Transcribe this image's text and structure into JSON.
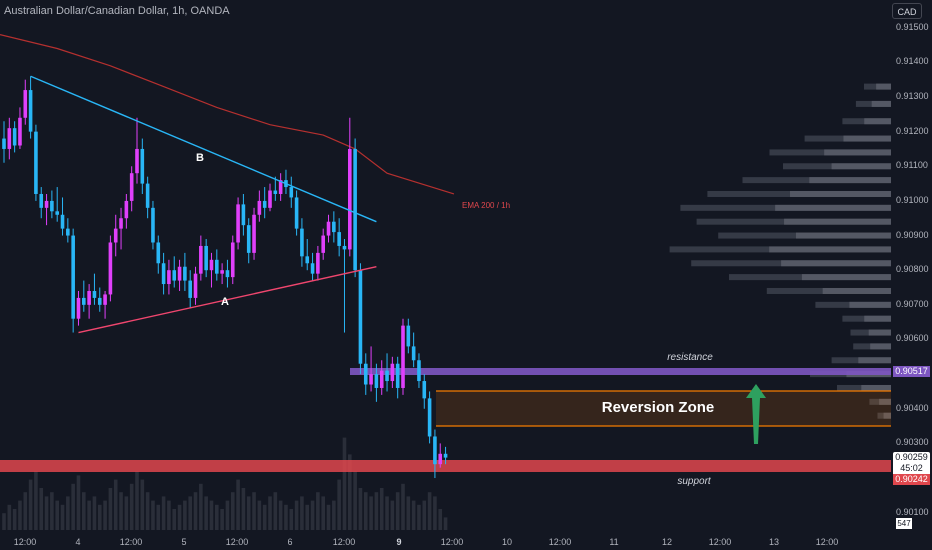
{
  "header": {
    "title": "Australian Dollar/Canadian Dollar, 1h, OANDA"
  },
  "currency_button": "CAD",
  "price_axis": {
    "labels": [
      "0.91500",
      "0.91400",
      "0.91300",
      "0.91200",
      "0.91100",
      "0.91000",
      "0.90900",
      "0.90800",
      "0.90700",
      "0.90600",
      "0.90400",
      "0.90300",
      "0.90100"
    ],
    "resistance_badge": "0.90517",
    "current_price_badge": "0.90259",
    "countdown": "45:02",
    "support_badge": "0.90242",
    "volume_badge": "547"
  },
  "time_axis": {
    "labels": [
      {
        "text": "12:00",
        "bold": false
      },
      {
        "text": "4",
        "bold": false
      },
      {
        "text": "12:00",
        "bold": false
      },
      {
        "text": "5",
        "bold": false
      },
      {
        "text": "12:00",
        "bold": false
      },
      {
        "text": "6",
        "bold": false
      },
      {
        "text": "12:00",
        "bold": false
      },
      {
        "text": "9",
        "bold": true
      },
      {
        "text": "12:00",
        "bold": false
      },
      {
        "text": "10",
        "bold": false
      },
      {
        "text": "12:00",
        "bold": false
      },
      {
        "text": "11",
        "bold": false
      },
      {
        "text": "12",
        "bold": false
      },
      {
        "text": "12:00",
        "bold": false
      },
      {
        "text": "13",
        "bold": false
      },
      {
        "text": "12:00",
        "bold": false
      }
    ]
  },
  "annotations": {
    "resistance": "resistance",
    "support": "support",
    "reversion_zone": "Reversion Zone",
    "ema": "EMA 200 / 1h",
    "line_a": "A",
    "line_b": "B"
  },
  "colors": {
    "background": "#131722",
    "bull": "#e040fb",
    "bear": "#29b6f6",
    "ema": "#b5302f",
    "trend_b": "#29b6f6",
    "trend_a": "#f0466e",
    "resistance": "#7e57c2",
    "support": "#e0474d",
    "zone_border": "#f57c00",
    "arrow": "#2ea05f"
  },
  "chart_data": {
    "type": "candlestick",
    "symbol": "AUDCAD",
    "timeframe": "1h",
    "price_range": [
      0.9005,
      0.9158
    ],
    "levels": {
      "resistance": 0.90517,
      "support": 0.90242,
      "reversion_zone": [
        0.90355,
        0.90455
      ]
    },
    "candles": [
      {
        "o": 0.9118,
        "h": 0.9123,
        "l": 0.9111,
        "c": 0.9115
      },
      {
        "o": 0.9115,
        "h": 0.9124,
        "l": 0.9112,
        "c": 0.9121
      },
      {
        "o": 0.9121,
        "h": 0.9123,
        "l": 0.9114,
        "c": 0.9116
      },
      {
        "o": 0.9116,
        "h": 0.9127,
        "l": 0.9115,
        "c": 0.9124
      },
      {
        "o": 0.9124,
        "h": 0.9135,
        "l": 0.9122,
        "c": 0.9132
      },
      {
        "o": 0.9132,
        "h": 0.9136,
        "l": 0.9118,
        "c": 0.912
      },
      {
        "o": 0.912,
        "h": 0.9122,
        "l": 0.91,
        "c": 0.9102
      },
      {
        "o": 0.9102,
        "h": 0.9104,
        "l": 0.9095,
        "c": 0.9098
      },
      {
        "o": 0.9098,
        "h": 0.9102,
        "l": 0.9093,
        "c": 0.91
      },
      {
        "o": 0.91,
        "h": 0.9103,
        "l": 0.9095,
        "c": 0.9097
      },
      {
        "o": 0.9097,
        "h": 0.9104,
        "l": 0.9094,
        "c": 0.9096
      },
      {
        "o": 0.9096,
        "h": 0.9101,
        "l": 0.909,
        "c": 0.9092
      },
      {
        "o": 0.9092,
        "h": 0.9095,
        "l": 0.9088,
        "c": 0.909
      },
      {
        "o": 0.909,
        "h": 0.9092,
        "l": 0.9062,
        "c": 0.9066
      },
      {
        "o": 0.9066,
        "h": 0.9074,
        "l": 0.9064,
        "c": 0.9072
      },
      {
        "o": 0.9072,
        "h": 0.9077,
        "l": 0.9068,
        "c": 0.907
      },
      {
        "o": 0.907,
        "h": 0.9076,
        "l": 0.9066,
        "c": 0.9074
      },
      {
        "o": 0.9074,
        "h": 0.9079,
        "l": 0.907,
        "c": 0.9072
      },
      {
        "o": 0.9072,
        "h": 0.9075,
        "l": 0.9068,
        "c": 0.907
      },
      {
        "o": 0.907,
        "h": 0.9074,
        "l": 0.9066,
        "c": 0.9073
      },
      {
        "o": 0.9073,
        "h": 0.909,
        "l": 0.9071,
        "c": 0.9088
      },
      {
        "o": 0.9088,
        "h": 0.9096,
        "l": 0.9084,
        "c": 0.9092
      },
      {
        "o": 0.9092,
        "h": 0.9098,
        "l": 0.9086,
        "c": 0.9095
      },
      {
        "o": 0.9095,
        "h": 0.9102,
        "l": 0.9092,
        "c": 0.91
      },
      {
        "o": 0.91,
        "h": 0.911,
        "l": 0.9097,
        "c": 0.9108
      },
      {
        "o": 0.9108,
        "h": 0.9124,
        "l": 0.9105,
        "c": 0.9115
      },
      {
        "o": 0.9115,
        "h": 0.9118,
        "l": 0.9102,
        "c": 0.9105
      },
      {
        "o": 0.9105,
        "h": 0.9107,
        "l": 0.9095,
        "c": 0.9098
      },
      {
        "o": 0.9098,
        "h": 0.91,
        "l": 0.9086,
        "c": 0.9088
      },
      {
        "o": 0.9088,
        "h": 0.909,
        "l": 0.9079,
        "c": 0.9082
      },
      {
        "o": 0.9082,
        "h": 0.9085,
        "l": 0.9073,
        "c": 0.9076
      },
      {
        "o": 0.9076,
        "h": 0.9083,
        "l": 0.9073,
        "c": 0.908
      },
      {
        "o": 0.908,
        "h": 0.9084,
        "l": 0.9075,
        "c": 0.9077
      },
      {
        "o": 0.9077,
        "h": 0.9083,
        "l": 0.9074,
        "c": 0.9081
      },
      {
        "o": 0.9081,
        "h": 0.9085,
        "l": 0.9074,
        "c": 0.9077
      },
      {
        "o": 0.9077,
        "h": 0.908,
        "l": 0.9069,
        "c": 0.9072
      },
      {
        "o": 0.9072,
        "h": 0.9081,
        "l": 0.907,
        "c": 0.9079
      },
      {
        "o": 0.9079,
        "h": 0.909,
        "l": 0.9077,
        "c": 0.9087
      },
      {
        "o": 0.9087,
        "h": 0.9089,
        "l": 0.9078,
        "c": 0.908
      },
      {
        "o": 0.908,
        "h": 0.9085,
        "l": 0.9075,
        "c": 0.9083
      },
      {
        "o": 0.9083,
        "h": 0.9086,
        "l": 0.9077,
        "c": 0.9079
      },
      {
        "o": 0.9079,
        "h": 0.9082,
        "l": 0.9076,
        "c": 0.908
      },
      {
        "o": 0.908,
        "h": 0.9083,
        "l": 0.9075,
        "c": 0.9078
      },
      {
        "o": 0.9078,
        "h": 0.909,
        "l": 0.9076,
        "c": 0.9088
      },
      {
        "o": 0.9088,
        "h": 0.9101,
        "l": 0.9086,
        "c": 0.9099
      },
      {
        "o": 0.9099,
        "h": 0.9102,
        "l": 0.909,
        "c": 0.9093
      },
      {
        "o": 0.9093,
        "h": 0.9095,
        "l": 0.9082,
        "c": 0.9085
      },
      {
        "o": 0.9085,
        "h": 0.9098,
        "l": 0.9083,
        "c": 0.9096
      },
      {
        "o": 0.9096,
        "h": 0.9103,
        "l": 0.9094,
        "c": 0.91
      },
      {
        "o": 0.91,
        "h": 0.9104,
        "l": 0.9095,
        "c": 0.9098
      },
      {
        "o": 0.9098,
        "h": 0.9105,
        "l": 0.9097,
        "c": 0.9103
      },
      {
        "o": 0.9103,
        "h": 0.9107,
        "l": 0.91,
        "c": 0.9102
      },
      {
        "o": 0.9102,
        "h": 0.9108,
        "l": 0.91,
        "c": 0.9106
      },
      {
        "o": 0.9106,
        "h": 0.9109,
        "l": 0.9102,
        "c": 0.9104
      },
      {
        "o": 0.9104,
        "h": 0.9107,
        "l": 0.9098,
        "c": 0.9101
      },
      {
        "o": 0.9101,
        "h": 0.9103,
        "l": 0.909,
        "c": 0.9092
      },
      {
        "o": 0.9092,
        "h": 0.9095,
        "l": 0.9081,
        "c": 0.9084
      },
      {
        "o": 0.9084,
        "h": 0.9089,
        "l": 0.908,
        "c": 0.9082
      },
      {
        "o": 0.9082,
        "h": 0.9085,
        "l": 0.9077,
        "c": 0.9079
      },
      {
        "o": 0.9079,
        "h": 0.9087,
        "l": 0.9077,
        "c": 0.9085
      },
      {
        "o": 0.9085,
        "h": 0.9092,
        "l": 0.9083,
        "c": 0.909
      },
      {
        "o": 0.909,
        "h": 0.9096,
        "l": 0.9088,
        "c": 0.9094
      },
      {
        "o": 0.9094,
        "h": 0.9097,
        "l": 0.9088,
        "c": 0.9091
      },
      {
        "o": 0.9091,
        "h": 0.9095,
        "l": 0.9084,
        "c": 0.9087
      },
      {
        "o": 0.9087,
        "h": 0.9089,
        "l": 0.9062,
        "c": 0.9086
      },
      {
        "o": 0.9086,
        "h": 0.9124,
        "l": 0.9084,
        "c": 0.9115
      },
      {
        "o": 0.9115,
        "h": 0.9118,
        "l": 0.9078,
        "c": 0.908
      },
      {
        "o": 0.908,
        "h": 0.9082,
        "l": 0.905,
        "c": 0.9053
      },
      {
        "o": 0.9053,
        "h": 0.9056,
        "l": 0.9044,
        "c": 0.9047
      },
      {
        "o": 0.9047,
        "h": 0.9058,
        "l": 0.9045,
        "c": 0.905
      },
      {
        "o": 0.905,
        "h": 0.9053,
        "l": 0.9042,
        "c": 0.9046
      },
      {
        "o": 0.9046,
        "h": 0.9054,
        "l": 0.9044,
        "c": 0.9051
      },
      {
        "o": 0.9051,
        "h": 0.9056,
        "l": 0.9045,
        "c": 0.9048
      },
      {
        "o": 0.9048,
        "h": 0.9055,
        "l": 0.9046,
        "c": 0.9053
      },
      {
        "o": 0.9053,
        "h": 0.9055,
        "l": 0.9043,
        "c": 0.9046
      },
      {
        "o": 0.9046,
        "h": 0.9066,
        "l": 0.9044,
        "c": 0.9064
      },
      {
        "o": 0.9064,
        "h": 0.9066,
        "l": 0.9056,
        "c": 0.9058
      },
      {
        "o": 0.9058,
        "h": 0.9062,
        "l": 0.9052,
        "c": 0.9054
      },
      {
        "o": 0.9054,
        "h": 0.9056,
        "l": 0.9046,
        "c": 0.9048
      },
      {
        "o": 0.9048,
        "h": 0.905,
        "l": 0.904,
        "c": 0.9043
      },
      {
        "o": 0.9043,
        "h": 0.9045,
        "l": 0.903,
        "c": 0.9032
      },
      {
        "o": 0.9032,
        "h": 0.9034,
        "l": 0.902,
        "c": 0.9024
      },
      {
        "o": 0.9024,
        "h": 0.903,
        "l": 0.9023,
        "c": 0.9027
      },
      {
        "o": 0.9027,
        "h": 0.9029,
        "l": 0.9024,
        "c": 0.90259
      }
    ],
    "volume": [
      4,
      6,
      5,
      7,
      9,
      12,
      14,
      10,
      8,
      9,
      7,
      6,
      8,
      11,
      13,
      9,
      7,
      8,
      6,
      7,
      10,
      12,
      9,
      8,
      11,
      14,
      12,
      9,
      7,
      6,
      8,
      7,
      5,
      6,
      7,
      8,
      9,
      11,
      8,
      7,
      6,
      5,
      7,
      9,
      12,
      10,
      8,
      9,
      7,
      6,
      8,
      9,
      7,
      6,
      5,
      7,
      8,
      6,
      7,
      9,
      8,
      6,
      7,
      12,
      22,
      18,
      14,
      10,
      9,
      8,
      9,
      10,
      8,
      7,
      9,
      11,
      8,
      7,
      6,
      7,
      9,
      8,
      5,
      3
    ],
    "ema200": [
      {
        "i": 0,
        "v": 0.9148
      },
      {
        "i": 10,
        "v": 0.9144
      },
      {
        "i": 20,
        "v": 0.9139
      },
      {
        "i": 30,
        "v": 0.9133
      },
      {
        "i": 40,
        "v": 0.9127
      },
      {
        "i": 50,
        "v": 0.9122
      },
      {
        "i": 60,
        "v": 0.9119
      },
      {
        "i": 66,
        "v": 0.9115
      },
      {
        "i": 72,
        "v": 0.9108
      },
      {
        "i": 78,
        "v": 0.9102
      }
    ],
    "trendlines": [
      {
        "name": "B",
        "from": {
          "i": 5,
          "v": 0.9136
        },
        "to": {
          "i": 70,
          "v": 0.9094
        }
      },
      {
        "name": "A",
        "from": {
          "i": 14,
          "v": 0.9062
        },
        "to": {
          "i": 70,
          "v": 0.9081
        }
      }
    ],
    "volume_profile": [
      {
        "p": 0.9133,
        "w": 0.1
      },
      {
        "p": 0.9128,
        "w": 0.13
      },
      {
        "p": 0.9123,
        "w": 0.18
      },
      {
        "p": 0.9118,
        "w": 0.32
      },
      {
        "p": 0.9114,
        "w": 0.45
      },
      {
        "p": 0.911,
        "w": 0.4
      },
      {
        "p": 0.9106,
        "w": 0.55
      },
      {
        "p": 0.9102,
        "w": 0.68
      },
      {
        "p": 0.9098,
        "w": 0.78
      },
      {
        "p": 0.9094,
        "w": 0.72
      },
      {
        "p": 0.909,
        "w": 0.64
      },
      {
        "p": 0.9086,
        "w": 0.82
      },
      {
        "p": 0.9082,
        "w": 0.74
      },
      {
        "p": 0.9078,
        "w": 0.6
      },
      {
        "p": 0.9074,
        "w": 0.46
      },
      {
        "p": 0.907,
        "w": 0.28
      },
      {
        "p": 0.9066,
        "w": 0.18
      },
      {
        "p": 0.9062,
        "w": 0.15
      },
      {
        "p": 0.9058,
        "w": 0.14
      },
      {
        "p": 0.9054,
        "w": 0.22
      },
      {
        "p": 0.905,
        "w": 0.3
      },
      {
        "p": 0.9046,
        "w": 0.2
      },
      {
        "p": 0.9042,
        "w": 0.08
      },
      {
        "p": 0.9038,
        "w": 0.05
      }
    ]
  }
}
